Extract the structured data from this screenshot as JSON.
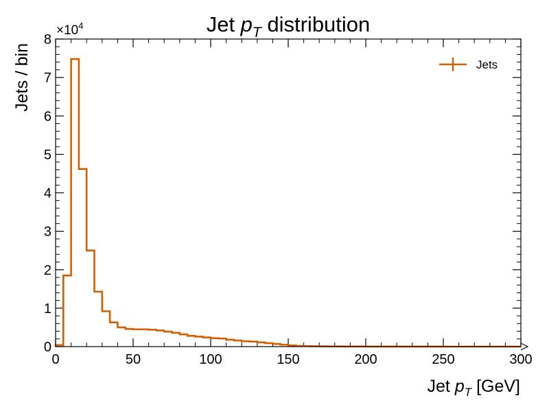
{
  "chart_data": {
    "type": "histogram",
    "title_parts": [
      "Jet ",
      "p",
      "T",
      " distribution"
    ],
    "xlabel_parts": [
      "Jet ",
      "p",
      "T",
      " [GeV]"
    ],
    "ylabel": "Jets / bin",
    "y_multiplier": {
      "base": "×10",
      "exponent": "4"
    },
    "xlim": [
      0,
      300
    ],
    "ylim": [
      0,
      80000
    ],
    "x_ticks": [
      0,
      50,
      100,
      150,
      200,
      250,
      300
    ],
    "x_tick_labels": [
      "0",
      "50",
      "100",
      "150",
      "200",
      "250",
      "300"
    ],
    "y_ticks": [
      0,
      10000,
      20000,
      30000,
      40000,
      50000,
      60000,
      70000,
      80000
    ],
    "y_tick_labels": [
      "0",
      "1",
      "2",
      "3",
      "4",
      "5",
      "6",
      "7",
      "8"
    ],
    "grid": false,
    "legend_position": "top-right",
    "series": [
      {
        "name": "Jets",
        "color": "#d55e00",
        "bin_edges": [
          0,
          5,
          10,
          15,
          20,
          25,
          30,
          35,
          40,
          45,
          50,
          55,
          60,
          65,
          70,
          75,
          80,
          85,
          90,
          95,
          100,
          105,
          110,
          115,
          120,
          125,
          130,
          135,
          140,
          145,
          150,
          155,
          160,
          165,
          170,
          175,
          180,
          185,
          190,
          195,
          200,
          205,
          210,
          215,
          220,
          225,
          230,
          235,
          240,
          245,
          250,
          255,
          260,
          265,
          270,
          275,
          280,
          285,
          290,
          295,
          300
        ],
        "values": [
          400,
          18500,
          74800,
          46200,
          25000,
          14300,
          9200,
          6300,
          5000,
          4600,
          4500,
          4500,
          4400,
          4200,
          3900,
          3600,
          3200,
          2800,
          2600,
          2400,
          2200,
          2100,
          1800,
          1600,
          1400,
          1300,
          1100,
          900,
          700,
          500,
          300,
          200,
          150,
          100,
          80,
          60,
          50,
          40,
          30,
          25,
          20,
          15,
          12,
          10,
          8,
          6,
          5,
          4,
          3,
          3,
          2,
          2,
          1,
          1,
          1,
          1,
          0,
          0,
          0,
          0
        ]
      }
    ]
  }
}
